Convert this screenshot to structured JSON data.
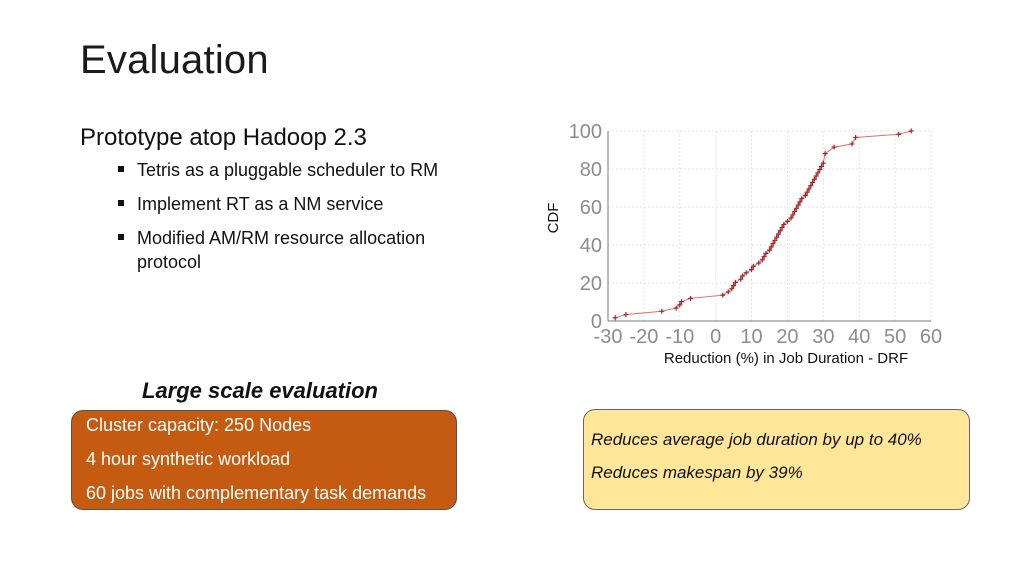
{
  "slide": {
    "title": "Evaluation",
    "main_bullet": "Prototype atop Hadoop 2.3",
    "sub_bullets": [
      "Tetris as a pluggable scheduler to RM",
      "Implement RT as a NM service",
      "Modified AM/RM resource allocation protocol"
    ],
    "eval_heading": "Large scale evaluation",
    "orange_box": [
      "Cluster capacity: 250 Nodes",
      "4 hour synthetic workload",
      "60 jobs with complementary task demands"
    ],
    "yellow_box": [
      "Reduces average job duration by up to 40%",
      "Reduces makespan by 39%"
    ]
  },
  "colors": {
    "orange_box": "#c55a11",
    "yellow_box": "#ffe699",
    "series_line": "#d9756b",
    "series_marker": "#9e2a2a",
    "tick_label": "#8c8c8c"
  },
  "chart_data": {
    "type": "line",
    "xlabel": "Reduction (%) in Job Duration - DRF",
    "ylabel": "CDF",
    "xlim": [
      -30,
      60
    ],
    "ylim": [
      0,
      100
    ],
    "x_ticks": [
      -30,
      -20,
      -10,
      0,
      10,
      20,
      30,
      40,
      50,
      60
    ],
    "x_tick_labels": [
      "-30",
      "-20",
      "-10",
      "0",
      "10",
      "20",
      "30",
      "40",
      "50",
      "60"
    ],
    "y_ticks": [
      0,
      20,
      40,
      60,
      80,
      100
    ],
    "y_tick_labels": [
      "0",
      "20",
      "40",
      "60",
      "80",
      "100"
    ],
    "grid": true,
    "series": [
      {
        "x": [
          -28,
          -25,
          -15,
          -11,
          -10,
          -9.5,
          -7,
          2,
          3.5,
          4.5,
          5,
          5.5,
          7,
          7.5,
          8.5,
          10,
          10.5,
          12,
          13,
          13.5,
          14,
          15,
          15.5,
          16,
          16.5,
          17,
          17.5,
          18,
          18.5,
          19,
          20,
          21,
          21.5,
          22,
          22.5,
          23,
          23.5,
          24,
          25,
          25.5,
          26,
          26.5,
          27,
          27.5,
          28,
          28.5,
          29,
          29.5,
          30,
          30.5,
          33,
          38,
          39,
          51,
          54.5
        ],
        "y": [
          1.7,
          3.4,
          5.1,
          6.8,
          8.5,
          10.2,
          11.9,
          13.6,
          15.3,
          17,
          18.6,
          20.3,
          22,
          23.7,
          25.4,
          27.1,
          28.8,
          30.5,
          32.2,
          33.9,
          35.6,
          37.3,
          39,
          40.7,
          42.4,
          44.1,
          45.8,
          47.5,
          49.2,
          50.8,
          52.5,
          54.2,
          55.9,
          57.6,
          59.3,
          61,
          62.7,
          64.4,
          66.1,
          67.8,
          69.5,
          71.2,
          72.9,
          74.6,
          76.3,
          78,
          79.7,
          81.4,
          83.1,
          88.1,
          91.5,
          93.2,
          96.6,
          98.3,
          100
        ]
      }
    ]
  }
}
